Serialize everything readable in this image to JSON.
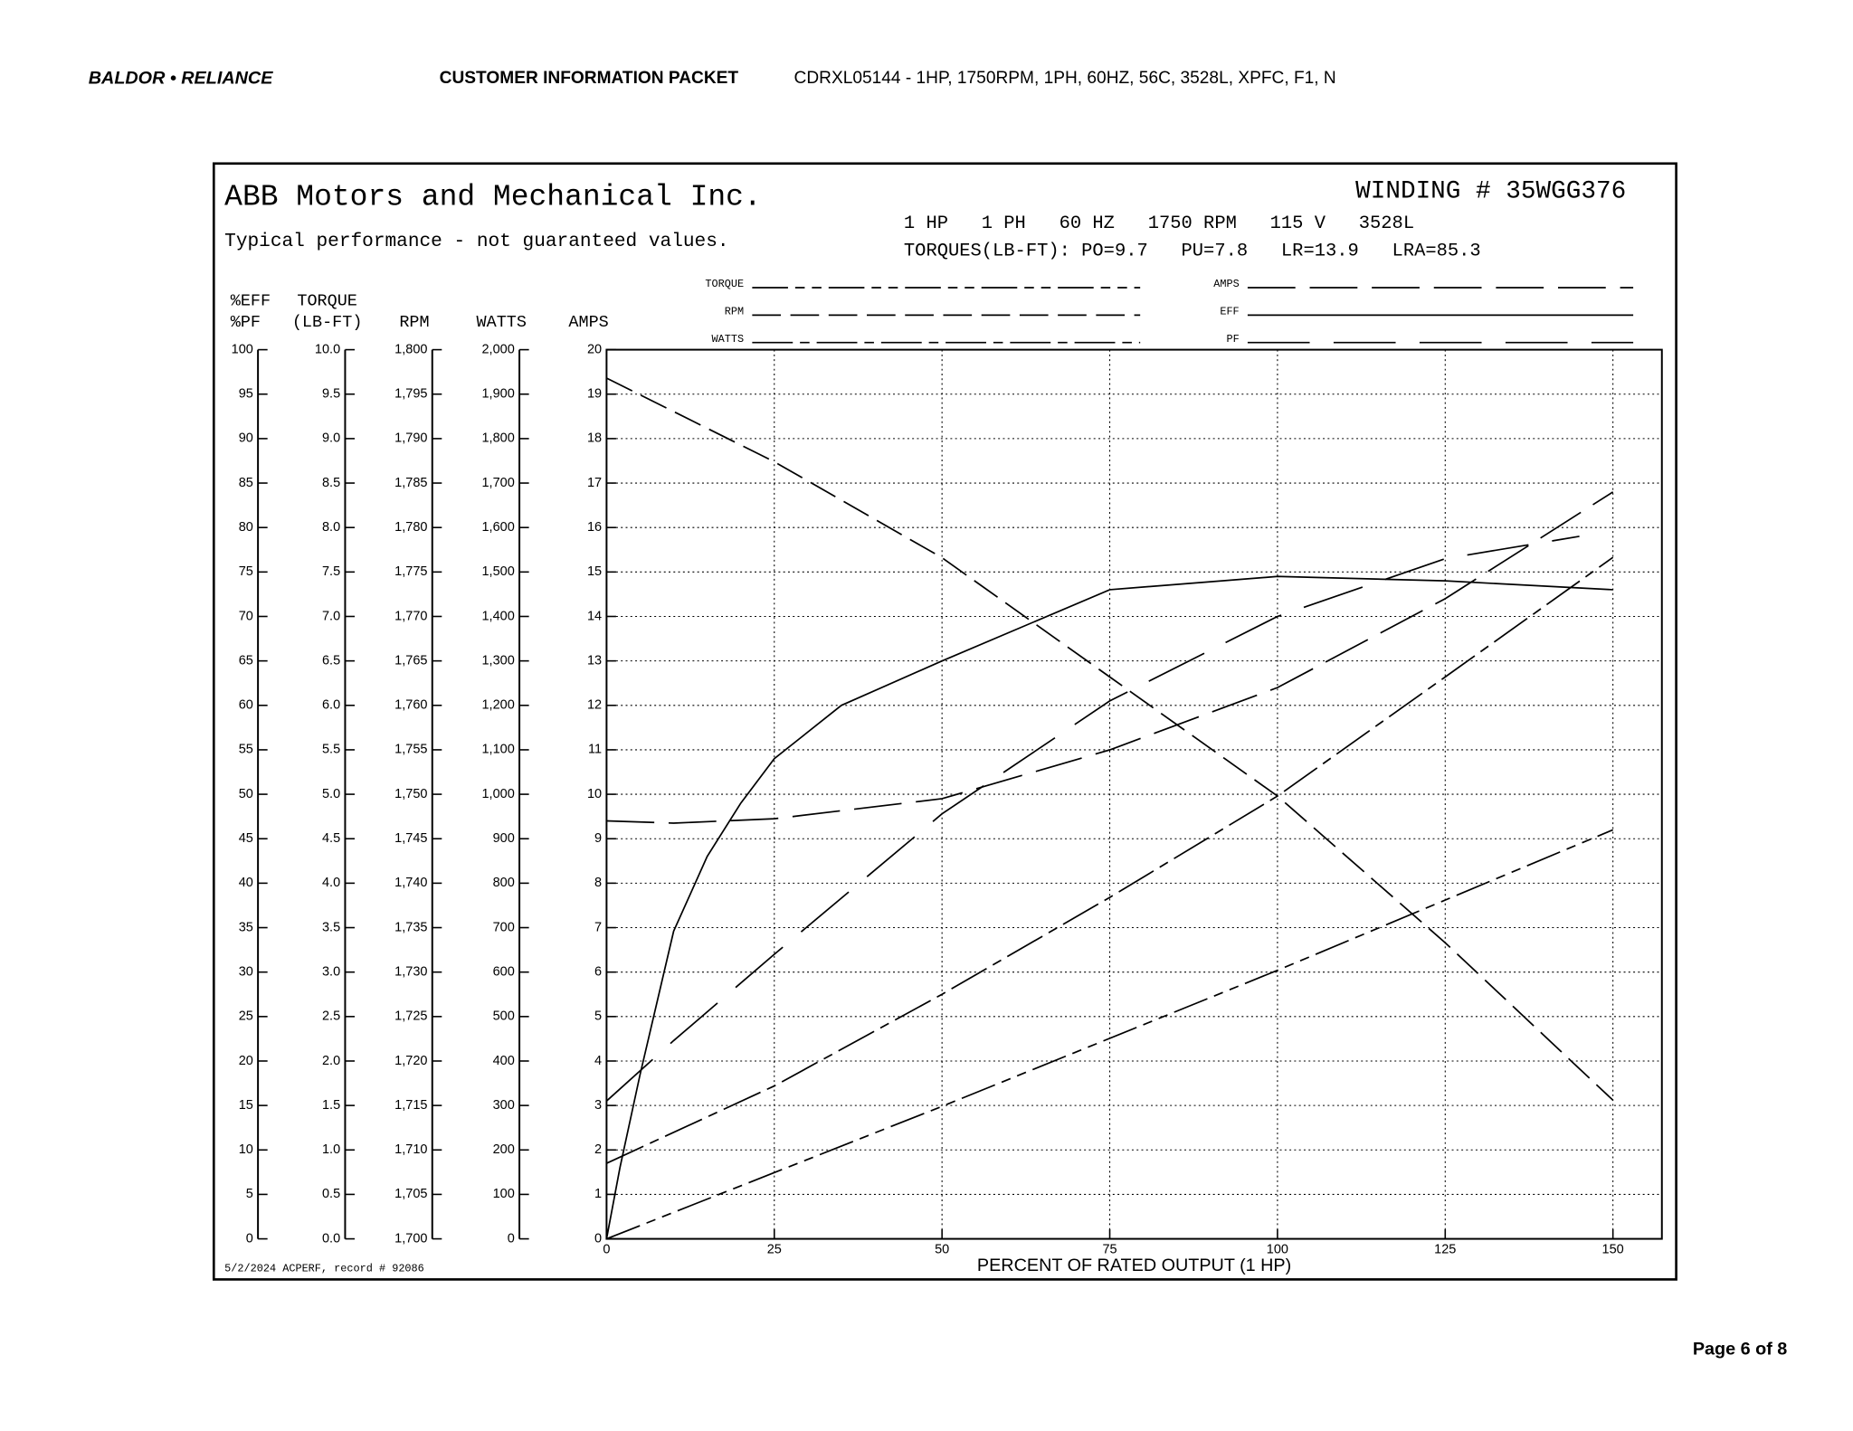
{
  "header": {
    "logo": "BALDOR • RELIANCE",
    "packet": "CUSTOMER INFORMATION PACKET",
    "model": "CDRXL05144 - 1HP, 1750RPM, 1PH, 60HZ, 56C, 3528L, XPFC, F1, N"
  },
  "footer": {
    "page": "Page 6 of 8"
  },
  "chart_data": {
    "type": "line",
    "title": "ABB Motors and Mechanical Inc.",
    "subtitle": "Typical performance - not guaranteed values.",
    "winding": "WINDING # 35WGG376",
    "ratings": "1 HP   1 PH   60 HZ   1750 RPM   115 V   3528L",
    "torques": "TORQUES(LB-FT): PO=9.7   PU=7.8   LR=13.9   LRA=85.3",
    "note": "5/2/2024 ACPERF, record # 92086",
    "x_label": "PERCENT OF RATED OUTPUT (1 HP)",
    "xlim": [
      0,
      150
    ],
    "xticks": [
      0,
      25,
      50,
      75,
      100,
      125,
      150
    ],
    "grid": true,
    "y_axes": [
      {
        "title": [
          "%EFF",
          "%PF"
        ],
        "ylim": [
          0,
          100
        ],
        "yticks": [
          0,
          5,
          10,
          15,
          20,
          25,
          30,
          35,
          40,
          45,
          50,
          55,
          60,
          65,
          70,
          75,
          80,
          85,
          90,
          95,
          100
        ]
      },
      {
        "title": [
          "TORQUE",
          "(LB-FT)"
        ],
        "ylim": [
          0,
          10
        ],
        "yticks": [
          {
            "value": 0,
            "label": "0.0"
          },
          0.5,
          {
            "value": 1,
            "label": "1.0"
          },
          1.5,
          {
            "value": 2,
            "label": "2.0"
          },
          2.5,
          {
            "value": 3,
            "label": "3.0"
          },
          3.5,
          {
            "value": 4,
            "label": "4.0"
          },
          4.5,
          {
            "value": 5,
            "label": "5.0"
          },
          5.5,
          {
            "value": 6,
            "label": "6.0"
          },
          6.5,
          {
            "value": 7,
            "label": "7.0"
          },
          7.5,
          {
            "value": 8,
            "label": "8.0"
          },
          8.5,
          {
            "value": 9,
            "label": "9.0"
          },
          9.5,
          {
            "value": 10,
            "label": "10.0"
          }
        ]
      },
      {
        "title": [
          "RPM"
        ],
        "ylim": [
          1700,
          1800
        ],
        "yticks": [
          {
            "value": 1700,
            "label": "1,700"
          },
          {
            "value": 1705,
            "label": "1,705"
          },
          {
            "value": 1710,
            "label": "1,710"
          },
          {
            "value": 1715,
            "label": "1,715"
          },
          {
            "value": 1720,
            "label": "1,720"
          },
          {
            "value": 1725,
            "label": "1,725"
          },
          {
            "value": 1730,
            "label": "1,730"
          },
          {
            "value": 1735,
            "label": "1,735"
          },
          {
            "value": 1740,
            "label": "1,740"
          },
          {
            "value": 1745,
            "label": "1,745"
          },
          {
            "value": 1750,
            "label": "1,750"
          },
          {
            "value": 1755,
            "label": "1,755"
          },
          {
            "value": 1760,
            "label": "1,760"
          },
          {
            "value": 1765,
            "label": "1,765"
          },
          {
            "value": 1770,
            "label": "1,770"
          },
          {
            "value": 1775,
            "label": "1,775"
          },
          {
            "value": 1780,
            "label": "1,780"
          },
          {
            "value": 1785,
            "label": "1,785"
          },
          {
            "value": 1790,
            "label": "1,790"
          },
          {
            "value": 1795,
            "label": "1,795"
          },
          {
            "value": 1800,
            "label": "1,800"
          }
        ]
      },
      {
        "title": [
          "WATTS"
        ],
        "ylim": [
          0,
          2000
        ],
        "yticks": [
          0,
          100,
          200,
          300,
          400,
          500,
          600,
          700,
          800,
          900,
          {
            "value": 1000,
            "label": "1,000"
          },
          {
            "value": 1100,
            "label": "1,100"
          },
          {
            "value": 1200,
            "label": "1,200"
          },
          {
            "value": 1300,
            "label": "1,300"
          },
          {
            "value": 1400,
            "label": "1,400"
          },
          {
            "value": 1500,
            "label": "1,500"
          },
          {
            "value": 1600,
            "label": "1,600"
          },
          {
            "value": 1700,
            "label": "1,700"
          },
          {
            "value": 1800,
            "label": "1,800"
          },
          {
            "value": 1900,
            "label": "1,900"
          },
          {
            "value": 2000,
            "label": "2,000"
          }
        ]
      },
      {
        "title": [
          "AMPS"
        ],
        "ylim": [
          0,
          20
        ],
        "yticks": [
          0,
          1,
          2,
          3,
          4,
          5,
          6,
          7,
          8,
          9,
          10,
          11,
          12,
          13,
          14,
          15,
          16,
          17,
          18,
          19,
          20
        ]
      }
    ],
    "series": [
      {
        "name": "TORQUE",
        "color": "#000000",
        "axis": 1,
        "x": [
          0,
          50,
          100,
          150
        ],
        "values": [
          0,
          1.49,
          3.02,
          4.6
        ]
      },
      {
        "name": "RPM",
        "color": "#000000",
        "axis": 2,
        "x": [
          0,
          25,
          50,
          75,
          100,
          125,
          150
        ],
        "values": [
          1796.8,
          1787.4,
          1776.6,
          1763.2,
          1749.8,
          1733.3,
          1715.6
        ]
      },
      {
        "name": "WATTS",
        "color": "#000000",
        "axis": 3,
        "x": [
          0,
          25,
          50,
          75,
          100,
          125,
          150
        ],
        "values": [
          170,
          344,
          550,
          768,
          996,
          1264,
          1533
        ]
      },
      {
        "name": "AMPS",
        "color": "#000000",
        "axis": 4,
        "x": [
          0,
          10,
          25,
          50,
          75,
          100,
          125,
          150
        ],
        "values": [
          9.4,
          9.35,
          9.45,
          9.9,
          11.0,
          12.4,
          14.4,
          16.8
        ]
      },
      {
        "name": "EFF",
        "color": "#000000",
        "axis": 0,
        "x": [
          0,
          2,
          5,
          10,
          15,
          20,
          25,
          35,
          50,
          75,
          100,
          125,
          150
        ],
        "values": [
          0,
          8,
          18.5,
          34.6,
          43,
          49,
          54,
          60,
          65,
          73,
          74.5,
          74,
          73
        ]
      },
      {
        "name": "PF",
        "color": "#000000",
        "axis": 0,
        "x": [
          0,
          10,
          25,
          50,
          75,
          100,
          125,
          145
        ],
        "values": [
          15.5,
          22.3,
          32,
          47.8,
          60.5,
          70,
          76.5,
          79
        ]
      }
    ]
  }
}
